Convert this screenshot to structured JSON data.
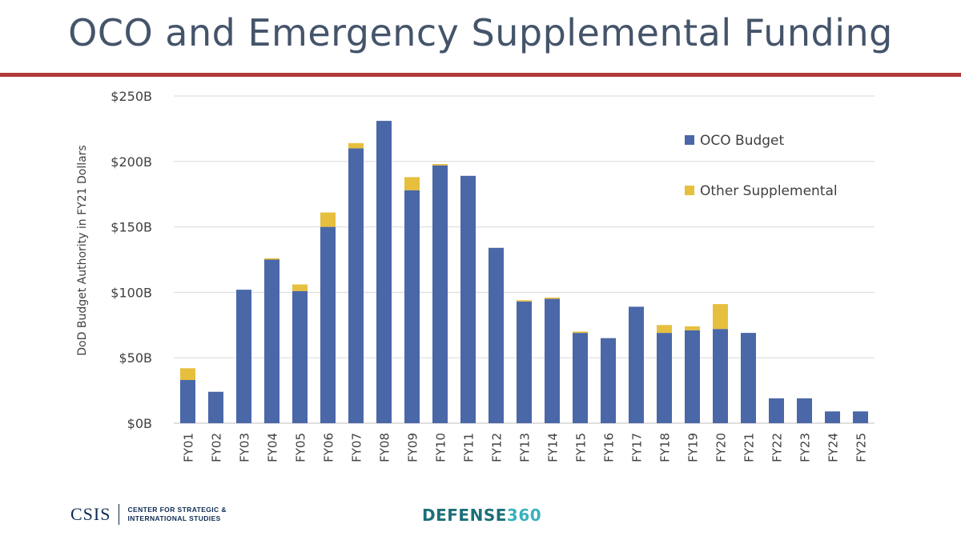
{
  "title": "OCO and Emergency Supplemental Funding",
  "footer": {
    "csis_wordmark": "CSIS",
    "csis_line1": "CENTER FOR STRATEGIC &",
    "csis_line2": "INTERNATIONAL STUDIES",
    "defense360_a": "DEFENSE",
    "defense360_b": "360"
  },
  "colors": {
    "oco": "#4a67a8",
    "supplemental": "#e6bf3e",
    "grid": "#d9d9d9",
    "title": "#44546a",
    "rule": "#b03a3a"
  },
  "chart_data": {
    "type": "bar",
    "stacked": true,
    "title": "",
    "xlabel": "",
    "ylabel": "DoD Budget Authority in FY21 Dollars",
    "ylim": [
      0,
      250
    ],
    "yticks": [
      0,
      50,
      100,
      150,
      200,
      250
    ],
    "ytick_labels": [
      "$0B",
      "$50B",
      "$100B",
      "$150B",
      "$200B",
      "$250B"
    ],
    "grid": true,
    "legend_position": "top-right",
    "categories": [
      "FY01",
      "FY02",
      "FY03",
      "FY04",
      "FY05",
      "FY06",
      "FY07",
      "FY08",
      "FY09",
      "FY10",
      "FY11",
      "FY12",
      "FY13",
      "FY14",
      "FY15",
      "FY16",
      "FY17",
      "FY18",
      "FY19",
      "FY20",
      "FY21",
      "FY22",
      "FY23",
      "FY24",
      "FY25"
    ],
    "series": [
      {
        "name": "OCO Budget",
        "color": "#4a67a8",
        "values": [
          33,
          24,
          102,
          125,
          101,
          150,
          210,
          231,
          178,
          197,
          189,
          134,
          93,
          95,
          69,
          65,
          89,
          69,
          71,
          72,
          69,
          19,
          19,
          9,
          9
        ]
      },
      {
        "name": "Other Supplemental",
        "color": "#e6bf3e",
        "values": [
          9,
          0,
          0,
          1,
          5,
          11,
          4,
          0,
          10,
          1,
          0,
          0,
          1,
          1,
          1,
          0,
          0,
          6,
          3,
          19,
          0,
          0,
          0,
          0,
          0
        ]
      }
    ]
  }
}
